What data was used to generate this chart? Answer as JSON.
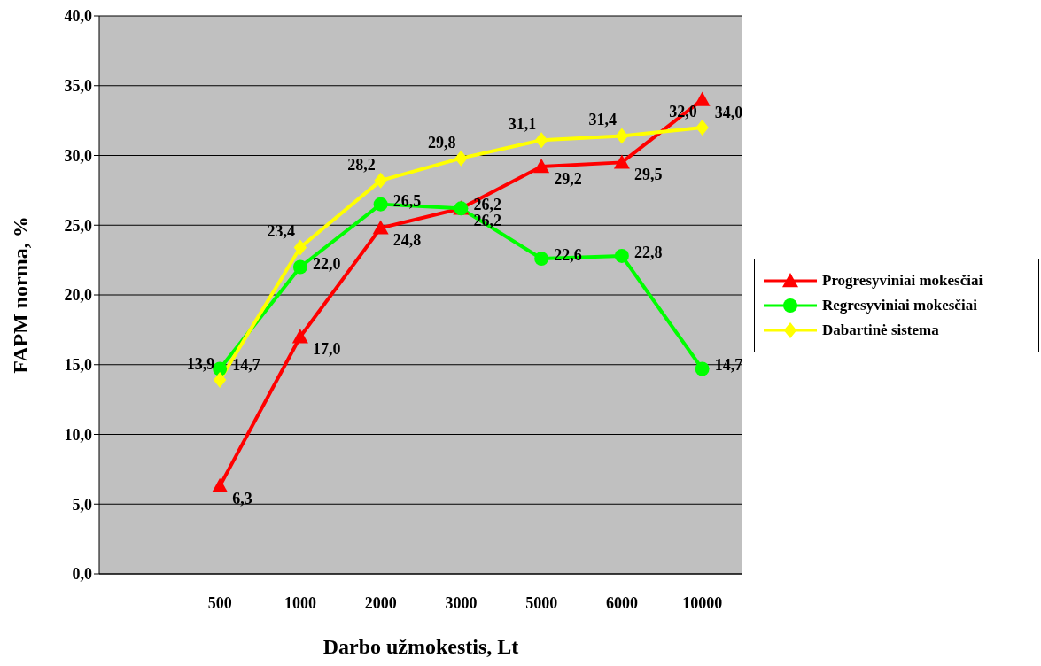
{
  "chart_data": {
    "type": "line",
    "xlabel": "Darbo užmokestis, Lt",
    "ylabel": "FAPM norma, %",
    "categories": [
      null,
      "500",
      "1000",
      "2000",
      "3000",
      "5000",
      "6000",
      "10000"
    ],
    "series": [
      {
        "name": "Progresyviniai mokesčiai",
        "color": "#ff0000",
        "marker": "triangle",
        "values": [
          null,
          6.3,
          17.0,
          24.8,
          26.2,
          29.2,
          29.5,
          34.0
        ],
        "value_labels": [
          null,
          "6,3",
          "17,0",
          "24,8",
          "26,2",
          "29,2",
          "29,5",
          "34,0"
        ]
      },
      {
        "name": "Regresyviniai mokesčiai",
        "color": "#00ff00",
        "marker": "circle",
        "values": [
          null,
          14.7,
          22.0,
          26.5,
          26.2,
          22.6,
          22.8,
          14.7
        ],
        "value_labels": [
          null,
          "14,7",
          "22,0",
          "26,5",
          "26,2",
          "22,6",
          "22,8",
          "14,7"
        ]
      },
      {
        "name": "Dabartinė sistema",
        "color": "#ffff00",
        "marker": "diamond",
        "values": [
          null,
          13.9,
          23.4,
          28.2,
          29.8,
          31.1,
          31.4,
          32.0
        ],
        "value_labels": [
          null,
          "13,9",
          "23,4",
          "28,2",
          "29,8",
          "31,1",
          "31,4",
          "32,0"
        ]
      }
    ],
    "ylim": [
      0,
      40
    ],
    "yticks": [
      {
        "value": 0,
        "label": "0,0"
      },
      {
        "value": 5,
        "label": "5,0"
      },
      {
        "value": 10,
        "label": "10,0"
      },
      {
        "value": 15,
        "label": "15,0"
      },
      {
        "value": 20,
        "label": "20,0"
      },
      {
        "value": 25,
        "label": "25,0"
      },
      {
        "value": 30,
        "label": "30,0"
      },
      {
        "value": 35,
        "label": "35,0"
      },
      {
        "value": 40,
        "label": "40,0"
      }
    ],
    "grid": "y",
    "legend": "right"
  }
}
